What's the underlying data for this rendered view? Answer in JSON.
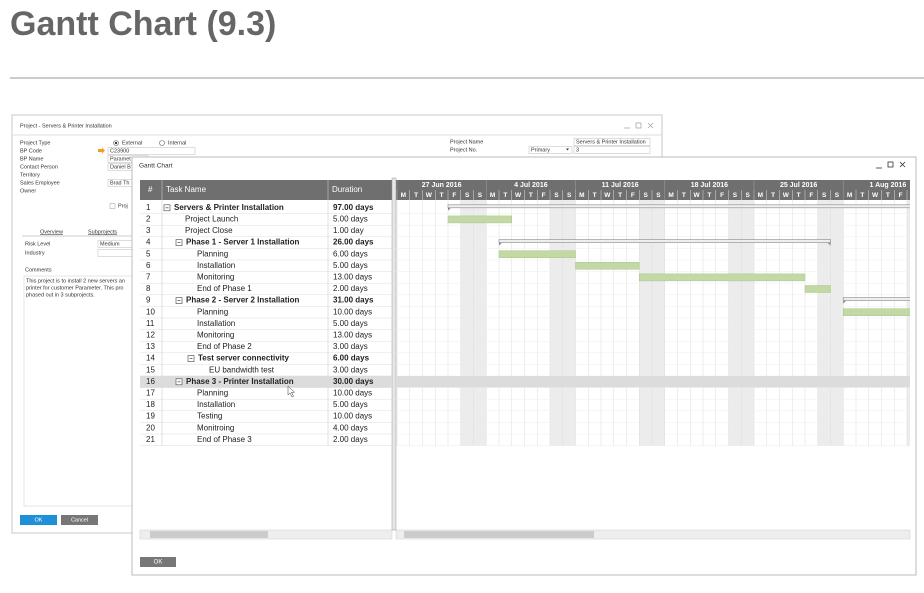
{
  "slide": {
    "title": "Gantt Chart (9.3)"
  },
  "project_window": {
    "title": "Project - Servers & Printer Installation",
    "left_labels": [
      "Project Type",
      "BP Code",
      "BP Name",
      "Contact Person",
      "Territory",
      "Sales Employee",
      "Owner"
    ],
    "project_type_options": [
      "External",
      "Internal"
    ],
    "bp_code": "C23900",
    "bp_name": "Paramet",
    "contact_person": "Daniel B",
    "sales_employee": "Brad Th",
    "right_labels": [
      "Project Name",
      "Project No."
    ],
    "project_name": "Servers & Printer Installation",
    "series": "Primary",
    "project_no": "3",
    "checkbox_label": "Proj",
    "tabs": [
      "Overview",
      "Subprojects"
    ],
    "risk_level_label": "Risk Level",
    "risk_level": "Medium",
    "industry_label": "Industry",
    "comments_label": "Comments",
    "comments_lines": [
      "This project is to install 2 new servers an",
      "printer for customer Parameter. This pro",
      "phased out in 3 subprojects."
    ],
    "buttons": [
      "OK",
      "Cancel"
    ]
  },
  "gantt_window": {
    "title": "Gantt Chart",
    "columns": [
      "#",
      "Task Name",
      "Duration"
    ],
    "weeks": [
      "27 Jun 2016",
      "4 Jul 2016",
      "11 Jul 2016",
      "18 Jul 2016",
      "25 Jul 2016",
      "1 Aug 2016"
    ],
    "days": [
      "M",
      "T",
      "W",
      "T",
      "F",
      "S",
      "S"
    ],
    "rows": [
      [
        1,
        "Servers & Printer Installation",
        "97.00 days"
      ],
      [
        2,
        "Project Launch",
        "5.00 days"
      ],
      [
        3,
        "Project Close",
        "1.00 day"
      ],
      [
        4,
        "Phase 1 - Server 1 Installation",
        "26.00 days"
      ],
      [
        5,
        "Planning",
        "6.00 days"
      ],
      [
        6,
        "Installation",
        "5.00 days"
      ],
      [
        7,
        "Monitoring",
        "13.00 days"
      ],
      [
        8,
        "End of Phase 1",
        "2.00 days"
      ],
      [
        9,
        "Phase 2 - Server 2 Installation",
        "31.00 days"
      ],
      [
        10,
        "Planning",
        "10.00 days"
      ],
      [
        11,
        "Installation",
        "5.00 days"
      ],
      [
        12,
        "Monitoring",
        "13.00 days"
      ],
      [
        13,
        "End of Phase 2",
        "3.00 days"
      ],
      [
        14,
        "Test server connectivity",
        "6.00 days"
      ],
      [
        15,
        "EU bandwidth test",
        "3.00 days"
      ],
      [
        16,
        "Phase 3 - Printer Installation",
        "30.00 days"
      ],
      [
        17,
        "Planning",
        "10.00 days"
      ],
      [
        18,
        "Installation",
        "5.00 days"
      ],
      [
        19,
        "Testing",
        "10.00 days"
      ],
      [
        20,
        "Monitroing",
        "4.00 days"
      ],
      [
        21,
        "End of Phase 3",
        "2.00 days"
      ]
    ],
    "button": "OK"
  }
}
